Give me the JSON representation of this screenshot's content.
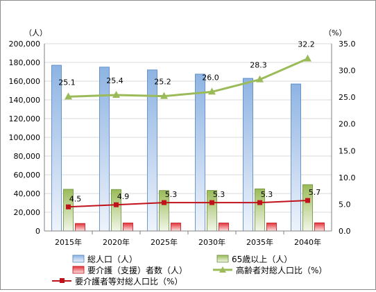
{
  "chart_data": {
    "type": "bar",
    "categories": [
      "2015年",
      "2020年",
      "2025年",
      "2030年",
      "2035年",
      "2040年"
    ],
    "left_axis": {
      "unit": "（人）",
      "ylim": [
        0,
        200000
      ],
      "ticks": [
        "0",
        "20,000",
        "40,000",
        "60,000",
        "80,000",
        "100,000",
        "120,000",
        "140,000",
        "160,000",
        "180,000",
        "200,000"
      ],
      "tick_values": [
        0,
        20000,
        40000,
        60000,
        80000,
        100000,
        120000,
        140000,
        160000,
        180000,
        200000
      ]
    },
    "right_axis": {
      "unit": "（%）",
      "ylim": [
        0,
        35
      ],
      "ticks": [
        "0.0",
        "5.0",
        "10.0",
        "15.0",
        "20.0",
        "25.0",
        "30.0",
        "35.0"
      ],
      "tick_values": [
        0,
        5,
        10,
        15,
        20,
        25,
        30,
        35
      ]
    },
    "series": [
      {
        "name": "総人口（人）",
        "kind": "bar",
        "axis": "left",
        "color": "#8eb4e3",
        "values": [
          177000,
          175000,
          172000,
          167500,
          163000,
          157000
        ]
      },
      {
        "name": "65歳以上（人）",
        "kind": "bar",
        "axis": "left",
        "color": "#9bbb59",
        "values": [
          44500,
          44300,
          43200,
          43300,
          45000,
          49500
        ]
      },
      {
        "name": "要介護（支援）者数（人）",
        "kind": "bar",
        "axis": "left",
        "color": "#e3343a",
        "values": [
          8000,
          8500,
          8500,
          8500,
          8500,
          8700
        ]
      },
      {
        "name": "高齢者対総人口比（%）",
        "kind": "line",
        "axis": "right",
        "color": "#9bbb59",
        "marker": "triangle",
        "values": [
          25.1,
          25.4,
          25.2,
          26.0,
          28.3,
          32.2
        ],
        "labels": [
          "25.1",
          "25.4",
          "25.2",
          "26.0",
          "28.3",
          "32.2"
        ]
      },
      {
        "name": "要介護者等対総人口比（%）",
        "kind": "line",
        "axis": "right",
        "color": "#c0121a",
        "marker": "square",
        "values": [
          4.5,
          4.9,
          5.3,
          5.3,
          5.3,
          5.7
        ],
        "labels": [
          "4.5",
          "4.9",
          "5.3",
          "5.3",
          "5.3",
          "5.7"
        ]
      }
    ],
    "grid": true,
    "legend_position": "bottom"
  }
}
